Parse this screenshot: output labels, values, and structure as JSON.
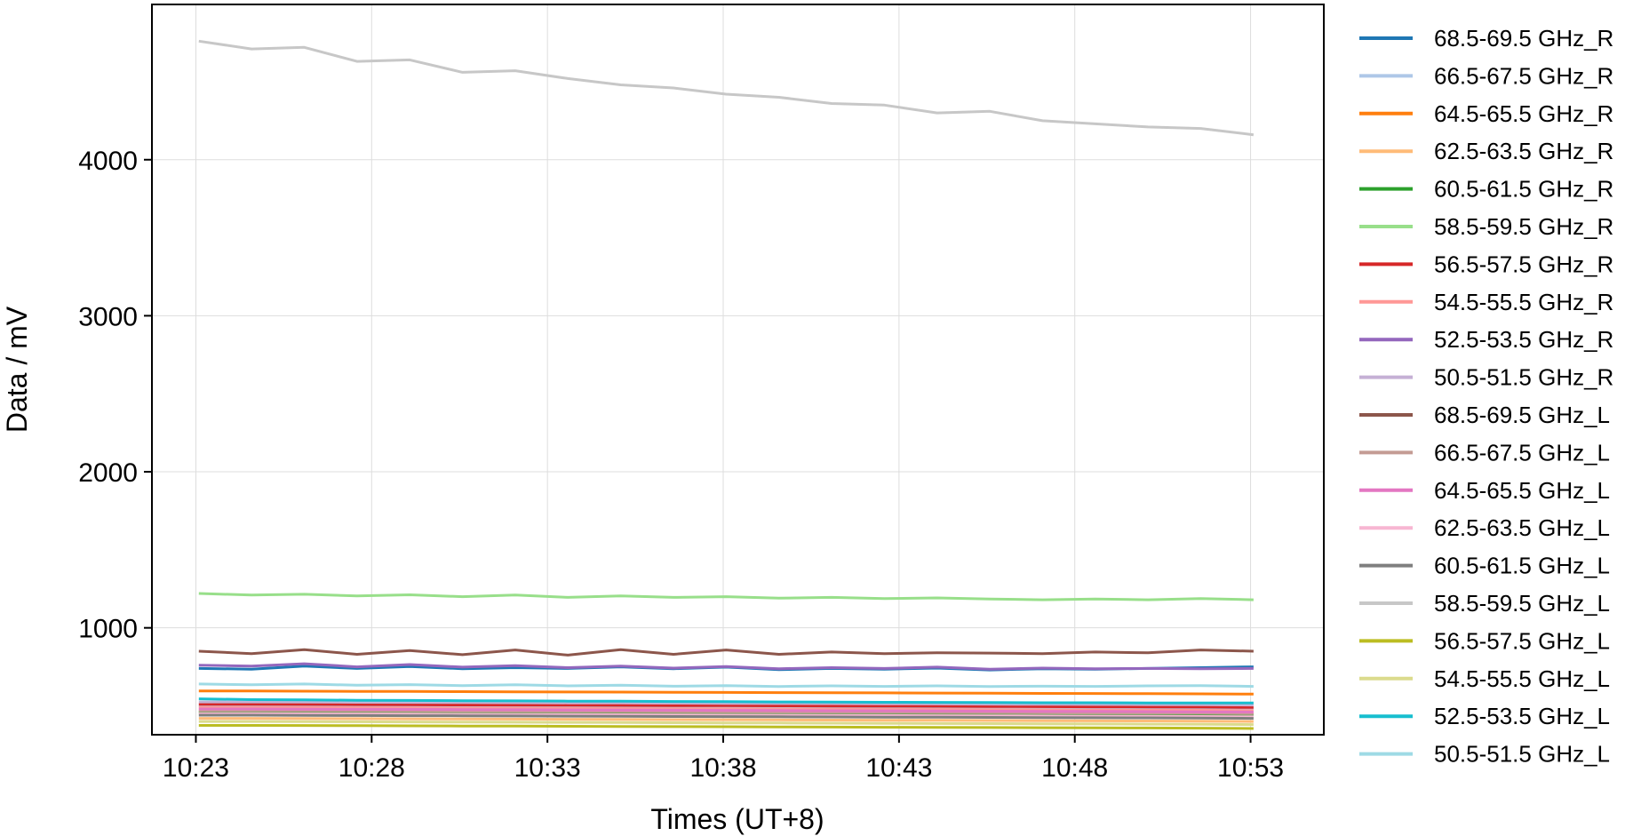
{
  "chart_data": {
    "type": "line",
    "xlabel": "Times (UT+8)",
    "ylabel": "Data / mV",
    "x_ticks": [
      "10:23",
      "10:28",
      "10:33",
      "10:38",
      "10:43",
      "10:48",
      "10:53"
    ],
    "x_range": [
      "10:21:45",
      "10:55:05"
    ],
    "ylim": [
      315,
      4995
    ],
    "y_ticks": [
      1000,
      2000,
      3000,
      4000
    ],
    "grid": true,
    "legend_position": "outside-right",
    "x": [
      "10:23:05",
      "10:24:35",
      "10:26:05",
      "10:27:35",
      "10:29:05",
      "10:30:35",
      "10:32:05",
      "10:33:35",
      "10:35:05",
      "10:36:35",
      "10:38:05",
      "10:39:35",
      "10:41:05",
      "10:42:35",
      "10:44:05",
      "10:45:35",
      "10:47:05",
      "10:48:35",
      "10:50:05",
      "10:51:35",
      "10:53:05"
    ],
    "series": [
      {
        "name": "68.5-69.5 GHz_R",
        "color": "#1f77b4",
        "values": [
          740,
          735,
          755,
          740,
          752,
          738,
          745,
          740,
          750,
          738,
          748,
          732,
          740,
          735,
          742,
          730,
          738,
          735,
          740,
          745,
          750
        ]
      },
      {
        "name": "66.5-67.5 GHz_R",
        "color": "#aec7e8",
        "values": [
          500,
          500,
          498,
          497,
          496,
          495,
          494,
          493,
          492,
          491,
          490,
          490,
          489,
          488,
          487,
          486,
          485,
          485,
          484,
          483,
          482
        ]
      },
      {
        "name": "64.5-65.5 GHz_R",
        "color": "#ff7f0e",
        "values": [
          595,
          595,
          594,
          593,
          592,
          591,
          590,
          589,
          588,
          587,
          586,
          585,
          584,
          583,
          582,
          581,
          580,
          579,
          578,
          577,
          575
        ]
      },
      {
        "name": "62.5-63.5 GHz_R",
        "color": "#ffbb78",
        "values": [
          420,
          420,
          419,
          418,
          417,
          416,
          415,
          414,
          413,
          412,
          411,
          410,
          409,
          408,
          407,
          406,
          405,
          404,
          403,
          402,
          400
        ]
      },
      {
        "name": "60.5-61.5 GHz_R",
        "color": "#2ca02c",
        "values": [
          460,
          460,
          459,
          458,
          458,
          457,
          456,
          455,
          455,
          454,
          453,
          452,
          452,
          451,
          450,
          449,
          448,
          448,
          447,
          446,
          445
        ]
      },
      {
        "name": "58.5-59.5 GHz_R",
        "color": "#98df8a",
        "values": [
          1220,
          1210,
          1215,
          1205,
          1212,
          1200,
          1210,
          1195,
          1205,
          1195,
          1200,
          1190,
          1195,
          1188,
          1192,
          1185,
          1180,
          1185,
          1180,
          1188,
          1180
        ]
      },
      {
        "name": "56.5-57.5 GHz_R",
        "color": "#d62728",
        "values": [
          510,
          510,
          509,
          508,
          507,
          506,
          505,
          504,
          503,
          502,
          501,
          500,
          499,
          498,
          497,
          496,
          495,
          494,
          493,
          492,
          490
        ]
      },
      {
        "name": "54.5-55.5 GHz_R",
        "color": "#ff9896",
        "values": [
          490,
          490,
          489,
          488,
          487,
          486,
          485,
          484,
          483,
          482,
          481,
          480,
          479,
          478,
          477,
          476,
          475,
          474,
          473,
          472,
          470
        ]
      },
      {
        "name": "52.5-53.5 GHz_R",
        "color": "#9467bd",
        "values": [
          760,
          755,
          770,
          750,
          765,
          748,
          758,
          745,
          755,
          742,
          752,
          738,
          745,
          740,
          748,
          735,
          742,
          738,
          740,
          738,
          740
        ]
      },
      {
        "name": "50.5-51.5 GHz_R",
        "color": "#c5b0d5",
        "values": [
          525,
          525,
          524,
          523,
          522,
          521,
          520,
          519,
          518,
          517,
          516,
          515,
          514,
          513,
          512,
          511,
          510,
          509,
          508,
          507,
          505
        ]
      },
      {
        "name": "68.5-69.5 GHz_L",
        "color": "#8c564b",
        "values": [
          850,
          835,
          860,
          830,
          855,
          828,
          858,
          825,
          860,
          830,
          858,
          830,
          845,
          835,
          840,
          838,
          835,
          845,
          840,
          858,
          850
        ]
      },
      {
        "name": "66.5-67.5 GHz_L",
        "color": "#c49c94",
        "values": [
          470,
          470,
          469,
          468,
          467,
          466,
          465,
          464,
          463,
          462,
          461,
          460,
          459,
          458,
          457,
          456,
          455,
          454,
          453,
          452,
          450
        ]
      },
      {
        "name": "64.5-65.5 GHz_L",
        "color": "#e377c2",
        "values": [
          480,
          480,
          479,
          478,
          477,
          476,
          475,
          474,
          473,
          472,
          471,
          470,
          469,
          468,
          467,
          466,
          465,
          464,
          463,
          462,
          460
        ]
      },
      {
        "name": "62.5-63.5 GHz_L",
        "color": "#f7b6d2",
        "values": [
          450,
          450,
          449,
          448,
          447,
          446,
          445,
          444,
          443,
          442,
          441,
          440,
          439,
          438,
          437,
          436,
          435,
          434,
          433,
          432,
          430
        ]
      },
      {
        "name": "60.5-61.5 GHz_L",
        "color": "#7f7f7f",
        "values": [
          440,
          440,
          439,
          438,
          437,
          436,
          435,
          434,
          433,
          432,
          431,
          430,
          429,
          428,
          427,
          426,
          425,
          424,
          423,
          422,
          420
        ]
      },
      {
        "name": "58.5-59.5 GHz_L",
        "color": "#c7c7c7",
        "values": [
          4760,
          4710,
          4720,
          4630,
          4640,
          4560,
          4570,
          4520,
          4480,
          4460,
          4420,
          4400,
          4360,
          4350,
          4300,
          4310,
          4250,
          4230,
          4210,
          4200,
          4160
        ]
      },
      {
        "name": "56.5-57.5 GHz_L",
        "color": "#bcbd22",
        "values": [
          375,
          375,
          374,
          373,
          372,
          371,
          370,
          369,
          368,
          367,
          366,
          365,
          364,
          363,
          362,
          361,
          360,
          359,
          358,
          357,
          355
        ]
      },
      {
        "name": "54.5-55.5 GHz_L",
        "color": "#dbdb8d",
        "values": [
          400,
          400,
          399,
          398,
          397,
          396,
          395,
          394,
          393,
          392,
          391,
          390,
          389,
          388,
          387,
          386,
          385,
          384,
          383,
          382,
          380
        ]
      },
      {
        "name": "52.5-53.5 GHz_L",
        "color": "#17becf",
        "values": [
          545,
          540,
          538,
          536,
          535,
          533,
          532,
          530,
          530,
          528,
          527,
          525,
          524,
          523,
          522,
          521,
          520,
          520,
          519,
          518,
          518
        ]
      },
      {
        "name": "50.5-51.5 GHz_L",
        "color": "#9edae5",
        "values": [
          640,
          635,
          640,
          632,
          636,
          630,
          635,
          628,
          632,
          626,
          630,
          624,
          628,
          625,
          628,
          624,
          626,
          625,
          628,
          630,
          625
        ]
      }
    ]
  }
}
